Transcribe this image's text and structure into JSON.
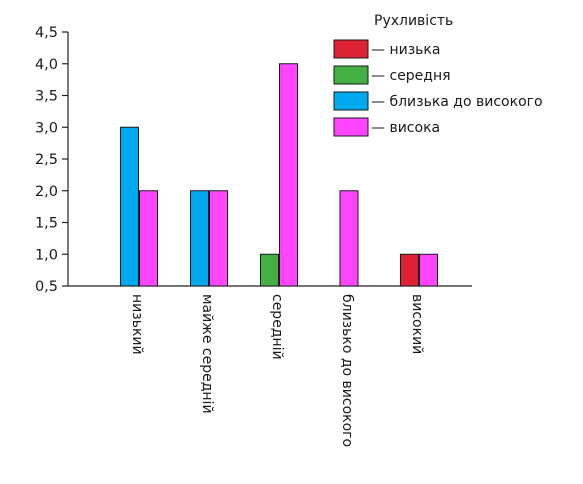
{
  "chart_data": {
    "type": "bar",
    "title": "",
    "xlabel": "",
    "ylabel": "",
    "ylim": [
      0.5,
      4.5
    ],
    "yticks": [
      0.5,
      1.0,
      1.5,
      2.0,
      2.5,
      3.0,
      3.5,
      4.0,
      4.5
    ],
    "ytick_labels": [
      "0,5",
      "1,0",
      "1,5",
      "2,0",
      "2,5",
      "3,0",
      "3,5",
      "4,0",
      "4,5"
    ],
    "categories": [
      "низький",
      "майже середній",
      "середній",
      "близько до високого",
      "високий"
    ],
    "category_label_rotation": "vertical",
    "legend": {
      "title": "Рухливість",
      "placement": "top-right"
    },
    "series": [
      {
        "name": "— низька",
        "color": "#dd2233",
        "values": [
          null,
          null,
          null,
          null,
          1
        ]
      },
      {
        "name": "— середня",
        "color": "#44b044",
        "values": [
          null,
          null,
          1,
          null,
          null
        ]
      },
      {
        "name": "— близька до високого",
        "color": "#00aaee",
        "values": [
          3,
          2,
          null,
          null,
          null
        ]
      },
      {
        "name": "— висока",
        "color": "#ff44ff",
        "values": [
          2,
          2,
          4,
          2,
          1
        ]
      }
    ],
    "grid": false
  }
}
